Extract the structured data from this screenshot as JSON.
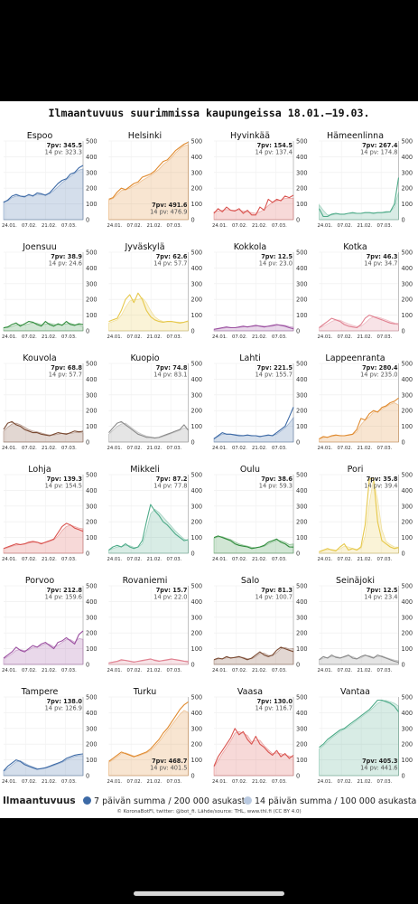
{
  "title": "Ilmaantuvuus suurimmissa kaupungeissa 18.01.–19.03.",
  "legend": {
    "title": "Ilmaantuvuus",
    "series7": "7 päivän summa / 200 000 asukasta",
    "series14": "14 päivän summa / 100 000 asukasta",
    "color7": "#3d6aa6",
    "color14": "#b9c9e0"
  },
  "source": "© KoronaBotFI, twitter: @bot_fi. Lähde/source: THL, www.thl.fi (CC BY 4.0)",
  "chart_data": {
    "type": "line",
    "x_ticks": [
      "24.01.",
      "07.02.",
      "21.02.",
      "07.03."
    ],
    "y_ticks": [
      0,
      100,
      200,
      300,
      400,
      500
    ],
    "ylim": [
      0,
      500
    ],
    "label_7": "7pv:",
    "label_14": "14 pv:",
    "cities": [
      {
        "name": "Espoo",
        "color": "#3d6aa6",
        "v7": "345.5",
        "v14": "323.3",
        "lab": "top",
        "s7": [
          110,
          125,
          150,
          160,
          150,
          145,
          160,
          150,
          170,
          165,
          155,
          170,
          200,
          230,
          250,
          260,
          290,
          300,
          330,
          345
        ],
        "s14": [
          115,
          120,
          140,
          150,
          150,
          150,
          155,
          155,
          160,
          160,
          160,
          165,
          185,
          210,
          235,
          255,
          275,
          295,
          315,
          323
        ]
      },
      {
        "name": "Helsinki",
        "color": "#e08a2e",
        "v7": "491.6",
        "v14": "476.9",
        "lab": "bottom",
        "s7": [
          130,
          140,
          175,
          200,
          190,
          210,
          230,
          240,
          270,
          280,
          290,
          310,
          340,
          370,
          380,
          410,
          440,
          460,
          480,
          492
        ],
        "s14": [
          125,
          135,
          160,
          185,
          190,
          200,
          215,
          230,
          250,
          265,
          280,
          300,
          320,
          350,
          370,
          395,
          425,
          450,
          470,
          477
        ]
      },
      {
        "name": "Hyvinkää",
        "color": "#d9534f",
        "v7": "154.5",
        "v14": "137.4",
        "lab": "top",
        "s7": [
          40,
          70,
          50,
          80,
          60,
          55,
          70,
          40,
          60,
          30,
          30,
          80,
          60,
          130,
          110,
          130,
          120,
          150,
          140,
          155
        ],
        "s14": [
          50,
          55,
          60,
          65,
          60,
          60,
          60,
          55,
          50,
          45,
          40,
          50,
          65,
          90,
          110,
          120,
          125,
          135,
          135,
          137
        ]
      },
      {
        "name": "Hämeenlinna",
        "color": "#4daa88",
        "v7": "267.4",
        "v14": "174.8",
        "lab": "top",
        "s7": [
          70,
          20,
          20,
          35,
          40,
          35,
          35,
          40,
          45,
          40,
          40,
          45,
          45,
          40,
          45,
          45,
          50,
          50,
          100,
          267
        ],
        "s14": [
          95,
          60,
          30,
          30,
          35,
          35,
          35,
          40,
          40,
          40,
          40,
          45,
          45,
          45,
          45,
          45,
          45,
          50,
          80,
          175
        ]
      },
      {
        "name": "Joensuu",
        "color": "#2e8b3a",
        "v7": "38.9",
        "v14": "24.6",
        "lab": "top",
        "s7": [
          20,
          25,
          40,
          50,
          30,
          45,
          60,
          55,
          40,
          30,
          60,
          40,
          30,
          45,
          35,
          60,
          40,
          35,
          45,
          39
        ],
        "s14": [
          20,
          22,
          28,
          38,
          40,
          38,
          45,
          52,
          48,
          40,
          42,
          48,
          42,
          38,
          40,
          45,
          48,
          40,
          38,
          25
        ]
      },
      {
        "name": "Jyväskylä",
        "color": "#e6c84a",
        "v7": "62.6",
        "v14": "57.7",
        "lab": "top",
        "s7": [
          60,
          70,
          80,
          130,
          200,
          230,
          180,
          240,
          200,
          130,
          90,
          70,
          60,
          55,
          60,
          60,
          55,
          50,
          55,
          63
        ],
        "s14": [
          50,
          60,
          70,
          100,
          150,
          190,
          200,
          200,
          210,
          180,
          130,
          90,
          70,
          60,
          58,
          58,
          57,
          55,
          55,
          58
        ]
      },
      {
        "name": "Kokkola",
        "color": "#9b4fa0",
        "v7": "12.5",
        "v14": "23.0",
        "lab": "top",
        "s7": [
          10,
          15,
          20,
          25,
          20,
          20,
          25,
          30,
          25,
          30,
          35,
          30,
          25,
          30,
          35,
          40,
          35,
          30,
          20,
          13
        ],
        "s14": [
          10,
          12,
          15,
          20,
          22,
          20,
          22,
          25,
          28,
          28,
          30,
          32,
          30,
          28,
          30,
          35,
          38,
          35,
          28,
          23
        ]
      },
      {
        "name": "Kotka",
        "color": "#e08090",
        "v7": "46.3",
        "v14": "34.7",
        "lab": "top",
        "s7": [
          20,
          40,
          60,
          80,
          70,
          60,
          40,
          30,
          25,
          20,
          40,
          80,
          100,
          90,
          80,
          70,
          60,
          50,
          45,
          46
        ],
        "s14": [
          20,
          30,
          45,
          60,
          70,
          68,
          55,
          45,
          35,
          28,
          30,
          50,
          75,
          90,
          88,
          80,
          70,
          60,
          50,
          35
        ]
      },
      {
        "name": "Kouvola",
        "color": "#7a4a32",
        "v7": "68.8",
        "v14": "57.7",
        "lab": "top",
        "s7": [
          80,
          120,
          130,
          110,
          100,
          80,
          70,
          60,
          60,
          50,
          45,
          40,
          50,
          60,
          55,
          50,
          60,
          70,
          65,
          69
        ],
        "s14": [
          70,
          95,
          115,
          120,
          110,
          95,
          80,
          70,
          65,
          58,
          50,
          45,
          45,
          50,
          55,
          55,
          55,
          60,
          62,
          58
        ]
      },
      {
        "name": "Kuopio",
        "color": "#8a8a8a",
        "v7": "74.8",
        "v14": "83.1",
        "lab": "top",
        "s7": [
          60,
          90,
          120,
          130,
          110,
          90,
          70,
          50,
          40,
          30,
          30,
          25,
          30,
          40,
          50,
          60,
          70,
          80,
          110,
          75
        ],
        "s14": [
          50,
          75,
          100,
          115,
          120,
          100,
          80,
          62,
          48,
          38,
          32,
          28,
          28,
          35,
          45,
          55,
          65,
          75,
          90,
          83
        ]
      },
      {
        "name": "Lahti",
        "color": "#3d6aa6",
        "v7": "221.5",
        "v14": "155.7",
        "lab": "top",
        "s7": [
          20,
          40,
          60,
          50,
          50,
          45,
          40,
          40,
          45,
          40,
          40,
          35,
          40,
          45,
          40,
          60,
          80,
          100,
          160,
          222
        ],
        "s14": [
          25,
          35,
          50,
          52,
          50,
          48,
          45,
          42,
          42,
          42,
          40,
          38,
          38,
          42,
          42,
          50,
          70,
          90,
          120,
          156
        ]
      },
      {
        "name": "Lappeenranta",
        "color": "#e08a2e",
        "v7": "280.4",
        "v14": "235.0",
        "lab": "top",
        "s7": [
          20,
          35,
          30,
          40,
          45,
          40,
          40,
          45,
          50,
          80,
          150,
          140,
          180,
          200,
          190,
          220,
          230,
          250,
          260,
          280
        ],
        "s14": [
          20,
          28,
          32,
          35,
          42,
          42,
          40,
          43,
          48,
          65,
          110,
          140,
          160,
          190,
          195,
          210,
          225,
          240,
          250,
          235
        ]
      },
      {
        "name": "Lohja",
        "color": "#d9534f",
        "v7": "139.3",
        "v14": "154.5",
        "lab": "top",
        "s7": [
          30,
          40,
          50,
          60,
          55,
          60,
          70,
          75,
          70,
          60,
          70,
          80,
          90,
          130,
          170,
          190,
          180,
          160,
          150,
          139
        ],
        "s14": [
          30,
          35,
          45,
          52,
          55,
          58,
          65,
          70,
          70,
          65,
          68,
          75,
          85,
          110,
          145,
          170,
          178,
          170,
          160,
          155
        ]
      },
      {
        "name": "Mikkeli",
        "color": "#4daa88",
        "v7": "87.2",
        "v14": "77.8",
        "lab": "top",
        "s7": [
          20,
          40,
          50,
          40,
          60,
          40,
          30,
          40,
          80,
          200,
          310,
          270,
          240,
          200,
          180,
          150,
          120,
          100,
          80,
          87
        ],
        "s14": [
          20,
          30,
          40,
          42,
          50,
          48,
          38,
          38,
          60,
          140,
          250,
          280,
          260,
          230,
          200,
          170,
          140,
          115,
          90,
          78
        ]
      },
      {
        "name": "Oulu",
        "color": "#2e8b3a",
        "v7": "38.6",
        "v14": "59.3",
        "lab": "top",
        "s7": [
          100,
          110,
          100,
          90,
          80,
          60,
          50,
          45,
          40,
          30,
          35,
          40,
          50,
          70,
          80,
          90,
          70,
          60,
          40,
          39
        ],
        "s14": [
          95,
          105,
          105,
          95,
          88,
          72,
          60,
          52,
          45,
          38,
          35,
          38,
          45,
          60,
          72,
          82,
          80,
          70,
          55,
          59
        ]
      },
      {
        "name": "Pori",
        "color": "#e6c84a",
        "v7": "35.8",
        "v14": "39.4",
        "lab": "top",
        "s7": [
          10,
          20,
          30,
          20,
          15,
          40,
          60,
          20,
          30,
          20,
          40,
          180,
          470,
          480,
          200,
          80,
          60,
          40,
          30,
          36
        ],
        "s14": [
          10,
          15,
          22,
          25,
          20,
          28,
          45,
          40,
          30,
          25,
          30,
          110,
          320,
          470,
          340,
          150,
          75,
          55,
          40,
          39
        ]
      },
      {
        "name": "Porvoo",
        "color": "#9b4fa0",
        "v7": "212.8",
        "v14": "159.6",
        "lab": "top",
        "s7": [
          40,
          60,
          80,
          110,
          90,
          80,
          100,
          120,
          110,
          130,
          140,
          120,
          100,
          140,
          150,
          170,
          150,
          130,
          190,
          213
        ],
        "s14": [
          35,
          50,
          68,
          90,
          95,
          88,
          92,
          108,
          112,
          120,
          132,
          128,
          112,
          122,
          140,
          158,
          158,
          142,
          165,
          160
        ]
      },
      {
        "name": "Rovaniemi",
        "color": "#e08090",
        "v7": "15.7",
        "v14": "22.0",
        "lab": "top",
        "s7": [
          10,
          15,
          20,
          30,
          25,
          20,
          15,
          20,
          25,
          30,
          35,
          25,
          20,
          25,
          30,
          35,
          30,
          25,
          20,
          16
        ],
        "s14": [
          10,
          12,
          16,
          24,
          27,
          23,
          18,
          18,
          22,
          28,
          32,
          30,
          24,
          23,
          27,
          32,
          32,
          28,
          23,
          22
        ]
      },
      {
        "name": "Salo",
        "color": "#7a4a32",
        "v7": "81.3",
        "v14": "100.7",
        "lab": "top",
        "s7": [
          30,
          40,
          35,
          50,
          40,
          45,
          50,
          40,
          30,
          40,
          60,
          80,
          60,
          50,
          60,
          90,
          110,
          100,
          90,
          81
        ],
        "s14": [
          28,
          35,
          36,
          42,
          44,
          43,
          47,
          45,
          36,
          36,
          50,
          70,
          72,
          58,
          56,
          75,
          100,
          108,
          98,
          101
        ]
      },
      {
        "name": "Seinäjoki",
        "color": "#8a8a8a",
        "v7": "12.5",
        "v14": "23.4",
        "lab": "top",
        "s7": [
          30,
          50,
          40,
          60,
          45,
          40,
          50,
          60,
          40,
          35,
          50,
          60,
          50,
          40,
          60,
          50,
          40,
          30,
          20,
          13
        ],
        "s14": [
          28,
          40,
          44,
          50,
          52,
          44,
          46,
          55,
          50,
          38,
          42,
          55,
          55,
          46,
          50,
          55,
          45,
          36,
          28,
          23
        ]
      },
      {
        "name": "Tampere",
        "color": "#3d6aa6",
        "v7": "138.0",
        "v14": "126.9",
        "lab": "top",
        "s7": [
          30,
          60,
          80,
          100,
          90,
          70,
          60,
          50,
          40,
          45,
          50,
          60,
          70,
          80,
          90,
          110,
          120,
          130,
          135,
          138
        ],
        "s14": [
          28,
          45,
          68,
          88,
          95,
          80,
          66,
          56,
          46,
          44,
          48,
          55,
          65,
          75,
          85,
          100,
          112,
          122,
          128,
          127
        ]
      },
      {
        "name": "Turku",
        "color": "#e08a2e",
        "v7": "468.7",
        "v14": "401.5",
        "lab": "bottom",
        "s7": [
          90,
          110,
          130,
          150,
          140,
          130,
          120,
          130,
          140,
          150,
          170,
          200,
          230,
          270,
          300,
          340,
          380,
          420,
          450,
          469
        ],
        "s14": [
          85,
          100,
          120,
          140,
          145,
          135,
          125,
          125,
          135,
          145,
          160,
          185,
          215,
          250,
          285,
          320,
          355,
          390,
          415,
          402
        ]
      },
      {
        "name": "Vaasa",
        "color": "#d9534f",
        "v7": "130.0",
        "v14": "116.7",
        "lab": "top",
        "s7": [
          60,
          120,
          160,
          200,
          240,
          300,
          260,
          280,
          230,
          200,
          250,
          200,
          180,
          150,
          130,
          160,
          120,
          140,
          110,
          130
        ],
        "s14": [
          55,
          95,
          140,
          180,
          220,
          270,
          280,
          270,
          255,
          215,
          225,
          225,
          190,
          165,
          140,
          145,
          140,
          130,
          125,
          117
        ]
      },
      {
        "name": "Vantaa",
        "color": "#4daa88",
        "v7": "405.3",
        "v14": "441.6",
        "lab": "bottom",
        "s7": [
          180,
          200,
          230,
          250,
          270,
          290,
          300,
          320,
          340,
          360,
          380,
          400,
          420,
          450,
          480,
          480,
          470,
          460,
          440,
          405
        ],
        "s14": [
          170,
          190,
          215,
          240,
          260,
          280,
          295,
          310,
          330,
          350,
          370,
          390,
          410,
          435,
          460,
          475,
          478,
          470,
          460,
          442
        ]
      }
    ]
  }
}
